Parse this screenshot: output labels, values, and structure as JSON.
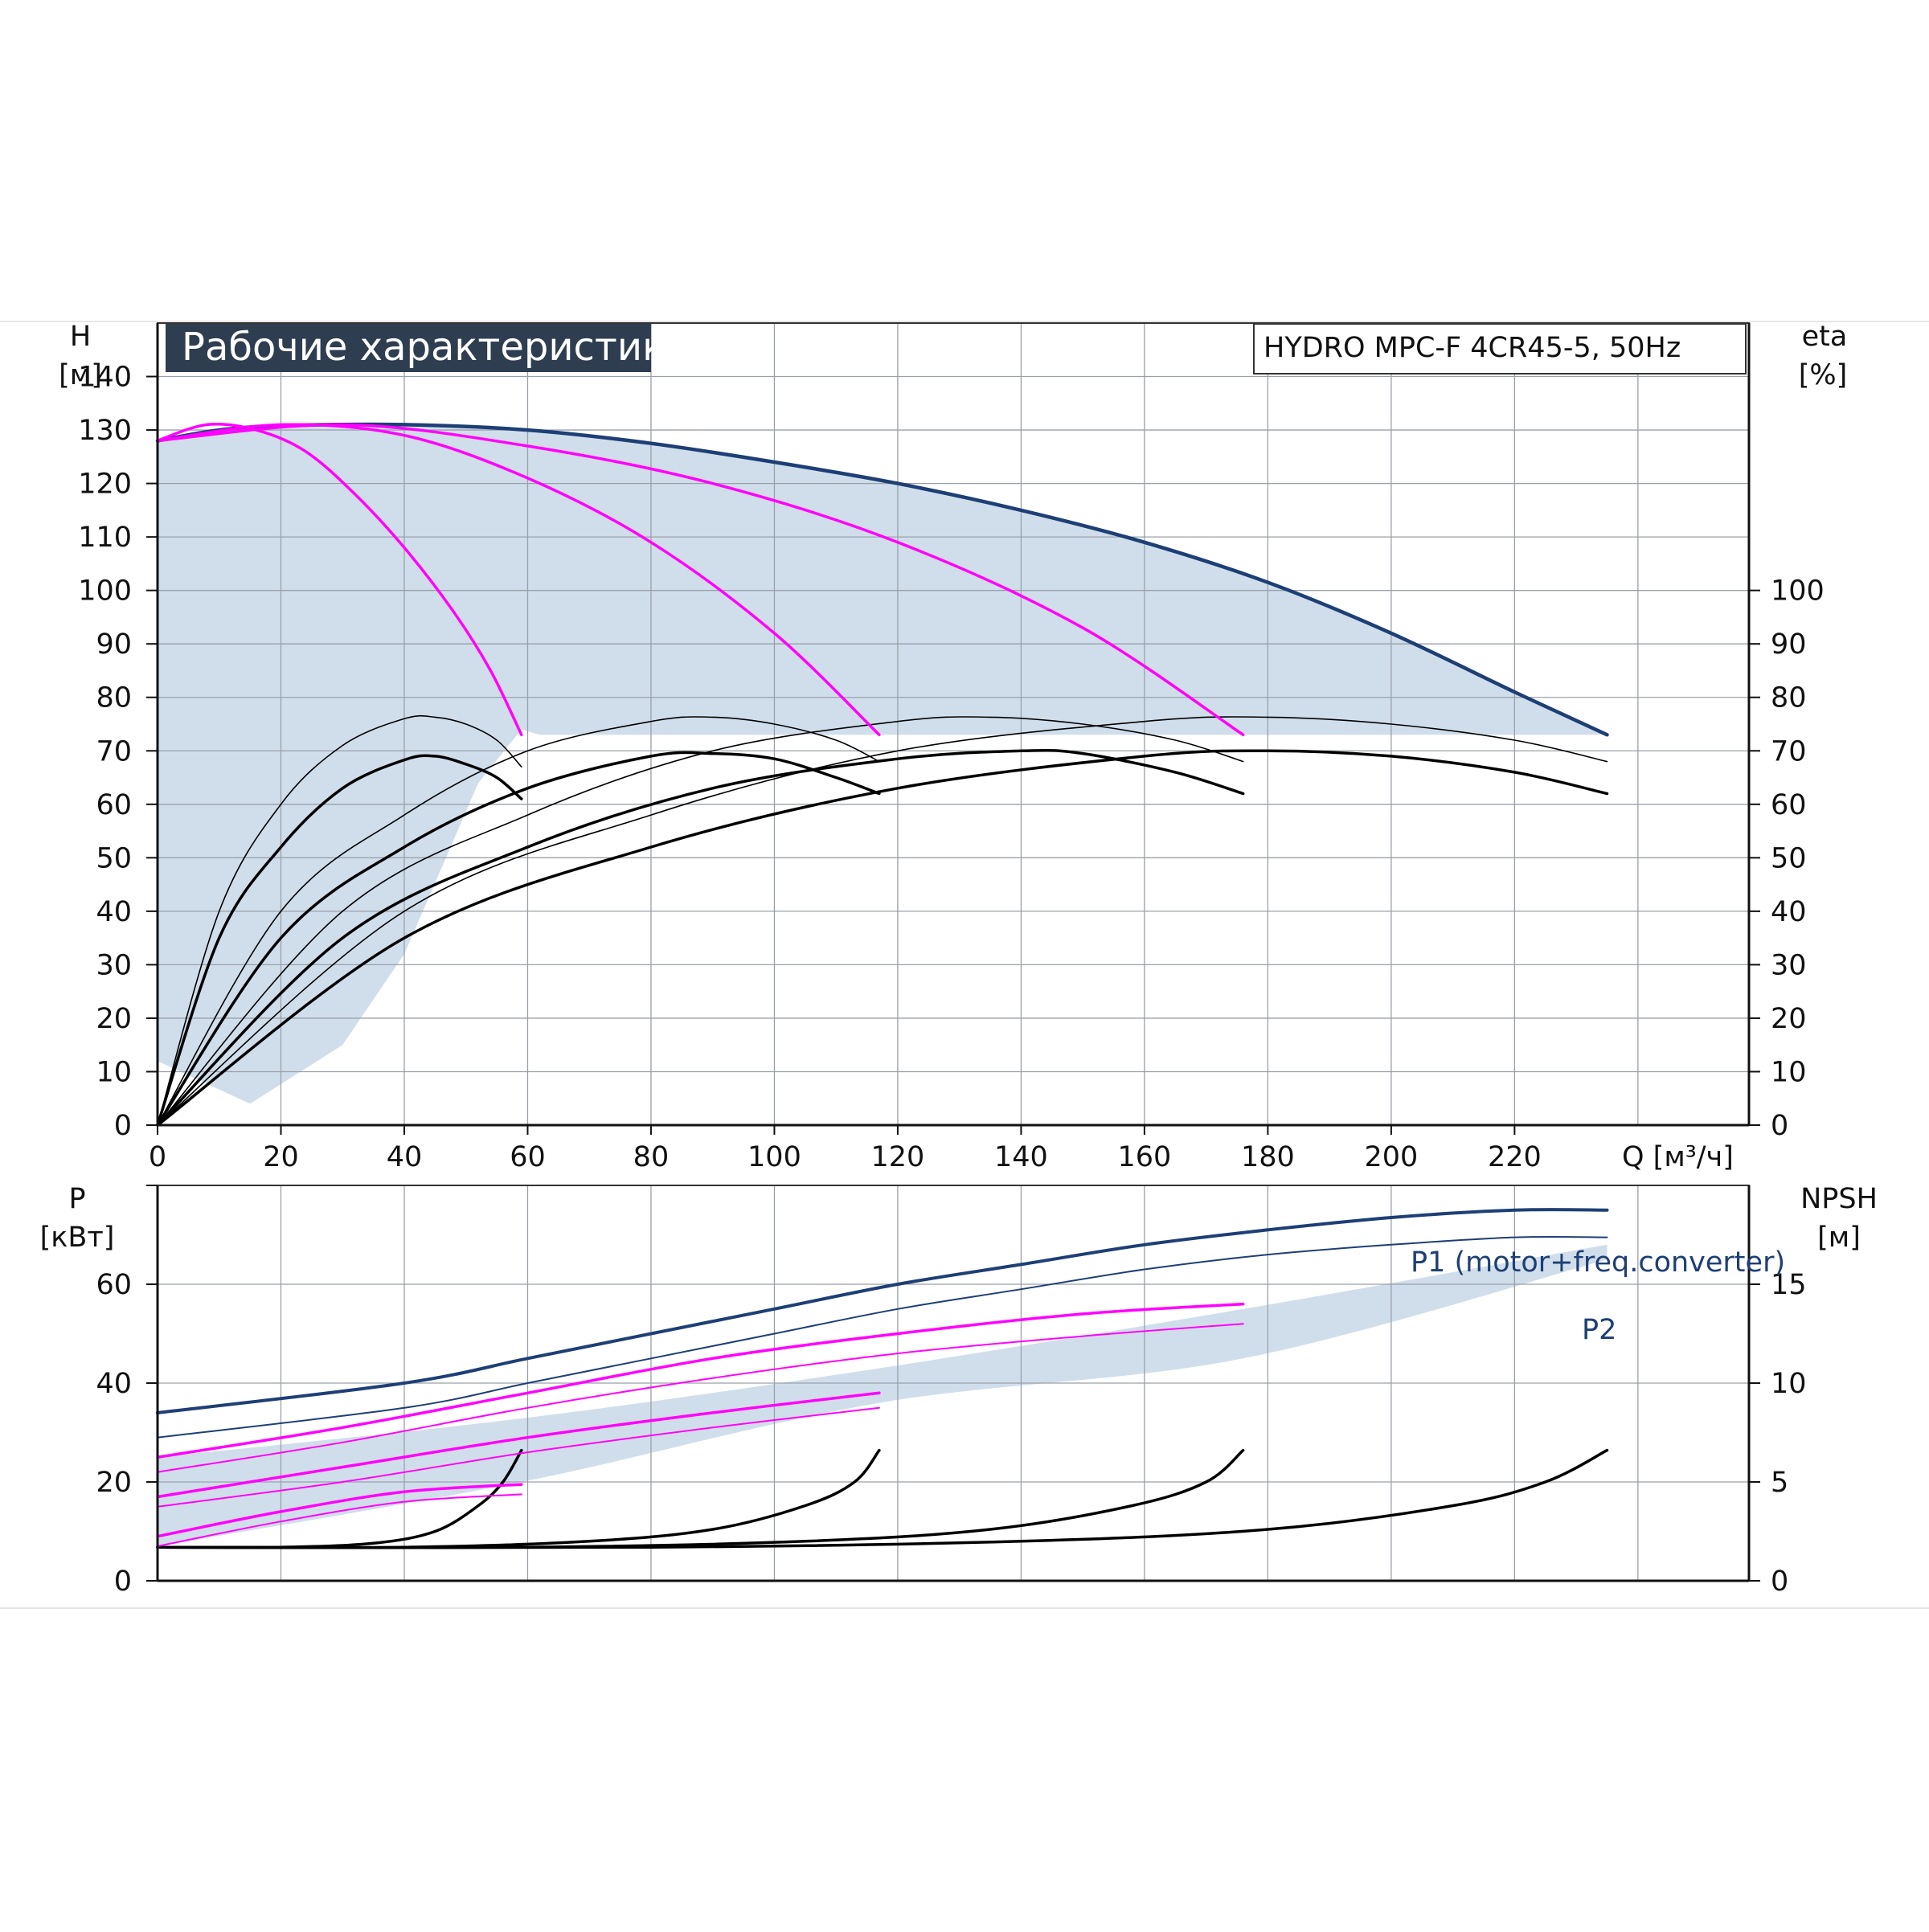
{
  "chart_data": [
    {
      "panel": "upper",
      "type": "line",
      "title": "Рабочие характеристики",
      "model": "HYDRO MPC-F 4CR45-5, 50Hz",
      "ylabel_left": [
        "H",
        "[м]"
      ],
      "ylabel_right": [
        "eta",
        "[%]"
      ],
      "xlabel": "Q [м³/ч]",
      "xticks": [
        0,
        20,
        40,
        60,
        80,
        100,
        120,
        140,
        160,
        180,
        200,
        220
      ],
      "xlim": [
        0,
        258
      ],
      "ylim": [
        0,
        150
      ],
      "yticks_left": [
        0,
        10,
        20,
        30,
        40,
        50,
        60,
        70,
        80,
        90,
        100,
        110,
        120,
        130,
        140
      ],
      "yticks_right": [
        0,
        10,
        20,
        30,
        40,
        50,
        60,
        70,
        80,
        90,
        100
      ],
      "grid": true,
      "colors": {
        "max_curve": "#1d3f75",
        "pump_curve": "#ff00ff",
        "efficiency": "#000000",
        "region": "#d0deec",
        "title_bg": "#2e3e50"
      },
      "region_top": [
        [
          0,
          128
        ],
        [
          10,
          130
        ],
        [
          20,
          130.8
        ],
        [
          40,
          131
        ],
        [
          60,
          130
        ],
        [
          80,
          127.5
        ],
        [
          100,
          124
        ],
        [
          120,
          120
        ],
        [
          140,
          115
        ],
        [
          160,
          109
        ],
        [
          180,
          101.5
        ],
        [
          200,
          92
        ],
        [
          220,
          81
        ],
        [
          235,
          73
        ]
      ],
      "region_bottom_right": [
        [
          235,
          73
        ],
        [
          62,
          73
        ],
        [
          59,
          74
        ],
        [
          52,
          64
        ],
        [
          40,
          32
        ],
        [
          30,
          15
        ],
        [
          15,
          4
        ],
        [
          0,
          12
        ]
      ],
      "region_bottom_left": [
        [
          0,
          12
        ],
        [
          0,
          128
        ]
      ],
      "head_curves": [
        {
          "name": "",
          "color": "#1d3f75",
          "width": 4.5,
          "points": [
            [
              0,
              128
            ],
            [
              10,
              130
            ],
            [
              20,
              130.8
            ],
            [
              40,
              131
            ],
            [
              60,
              130
            ],
            [
              80,
              127.5
            ],
            [
              100,
              124
            ],
            [
              120,
              120
            ],
            [
              140,
              115
            ],
            [
              160,
              109
            ],
            [
              180,
              101.5
            ],
            [
              200,
              92
            ],
            [
              220,
              81
            ],
            [
              235,
              73
            ]
          ]
        },
        {
          "name": "",
          "color": "#ff00ff",
          "width": 3.5,
          "points": [
            [
              0,
              128
            ],
            [
              8,
              131
            ],
            [
              16,
              130
            ],
            [
              24,
              126
            ],
            [
              32,
              118
            ],
            [
              40,
              108
            ],
            [
              48,
              96
            ],
            [
              54,
              85
            ],
            [
              59,
              73
            ]
          ]
        },
        {
          "name": "",
          "color": "#ff00ff",
          "width": 3.5,
          "points": [
            [
              0,
              128
            ],
            [
              20,
              131
            ],
            [
              40,
              129
            ],
            [
              60,
              121
            ],
            [
              80,
              109
            ],
            [
              100,
              92
            ],
            [
              117,
              73
            ]
          ]
        },
        {
          "name": "",
          "color": "#ff00ff",
          "width": 3.5,
          "points": [
            [
              0,
              128
            ],
            [
              30,
              131
            ],
            [
              60,
              127
            ],
            [
              90,
              120
            ],
            [
              120,
              109
            ],
            [
              150,
              93
            ],
            [
              176,
              73
            ]
          ]
        }
      ],
      "efficiency_curves": [
        {
          "name": "",
          "width": 1.6,
          "points": [
            [
              0,
              0
            ],
            [
              10,
              40
            ],
            [
              20,
              60
            ],
            [
              30,
              71
            ],
            [
              40,
              76
            ],
            [
              45,
              76.3
            ],
            [
              50,
              75
            ],
            [
              55,
              72
            ],
            [
              59,
              67
            ]
          ]
        },
        {
          "name": "",
          "width": 3.5,
          "points": [
            [
              0,
              0
            ],
            [
              10,
              35
            ],
            [
              20,
              52
            ],
            [
              30,
              63
            ],
            [
              40,
              68.3
            ],
            [
              45,
              69
            ],
            [
              50,
              67.5
            ],
            [
              55,
              65
            ],
            [
              59,
              61
            ]
          ]
        },
        {
          "name": "",
          "width": 1.6,
          "points": [
            [
              0,
              0
            ],
            [
              20,
              40
            ],
            [
              40,
              58
            ],
            [
              60,
              70
            ],
            [
              80,
              75.5
            ],
            [
              90,
              76.3
            ],
            [
              100,
              75
            ],
            [
              110,
              72
            ],
            [
              117,
              68
            ]
          ]
        },
        {
          "name": "",
          "width": 3.5,
          "points": [
            [
              0,
              0
            ],
            [
              20,
              35
            ],
            [
              40,
              52
            ],
            [
              60,
              63
            ],
            [
              80,
              69
            ],
            [
              90,
              69.5
            ],
            [
              100,
              68.5
            ],
            [
              110,
              65
            ],
            [
              117,
              62
            ]
          ]
        },
        {
          "name": "",
          "width": 1.6,
          "points": [
            [
              0,
              0
            ],
            [
              30,
              40
            ],
            [
              60,
              58
            ],
            [
              90,
              70
            ],
            [
              120,
              75.5
            ],
            [
              135,
              76.3
            ],
            [
              150,
              75
            ],
            [
              165,
              72
            ],
            [
              176,
              68
            ]
          ]
        },
        {
          "name": "",
          "width": 3.5,
          "points": [
            [
              0,
              0
            ],
            [
              30,
              35
            ],
            [
              60,
              52
            ],
            [
              90,
              63
            ],
            [
              120,
              68.5
            ],
            [
              140,
              70
            ],
            [
              150,
              69.5
            ],
            [
              165,
              66
            ],
            [
              176,
              62
            ]
          ]
        },
        {
          "name": "",
          "width": 1.6,
          "points": [
            [
              0,
              0
            ],
            [
              40,
              40
            ],
            [
              80,
              58
            ],
            [
              120,
              70
            ],
            [
              160,
              75.5
            ],
            [
              180,
              76.3
            ],
            [
              200,
              75
            ],
            [
              220,
              72
            ],
            [
              235,
              68
            ]
          ]
        },
        {
          "name": "",
          "width": 3.5,
          "points": [
            [
              0,
              0
            ],
            [
              40,
              35
            ],
            [
              80,
              52
            ],
            [
              120,
              63
            ],
            [
              160,
              69
            ],
            [
              180,
              70
            ],
            [
              200,
              69
            ],
            [
              220,
              66
            ],
            [
              235,
              62
            ]
          ]
        }
      ]
    },
    {
      "panel": "lower",
      "type": "line",
      "ylabel_left": [
        "P",
        "[кВт]"
      ],
      "ylabel_right": [
        "NPSH",
        "[м]"
      ],
      "xlim": [
        0,
        258
      ],
      "ylim": [
        0,
        80
      ],
      "yticks_left": [
        0,
        20,
        40,
        60
      ],
      "yticks_right": [
        0,
        5,
        10,
        15
      ],
      "right_axis_scale_m_per_p_unit": 0.25,
      "grid": true,
      "legend": [
        {
          "label": "P1 (motor+freq.converter)",
          "color": "#1d3f75"
        },
        {
          "label": "P2",
          "color": "#1d3f75"
        }
      ],
      "band_top": [
        [
          0,
          25
        ],
        [
          60,
          33
        ],
        [
          117,
          43
        ],
        [
          176,
          55
        ],
        [
          235,
          68
        ]
      ],
      "band_bottom": [
        [
          235,
          65
        ],
        [
          176,
          45
        ],
        [
          117,
          36
        ],
        [
          59,
          20
        ],
        [
          0,
          7
        ]
      ],
      "power_curves": [
        {
          "name": "P1 (motor+freq.converter)",
          "color": "#1d3f75",
          "width": 4,
          "points": [
            [
              0,
              34
            ],
            [
              40,
              40
            ],
            [
              60,
              45
            ],
            [
              80,
              50
            ],
            [
              100,
              55
            ],
            [
              120,
              60
            ],
            [
              140,
              64
            ],
            [
              160,
              68
            ],
            [
              180,
              71
            ],
            [
              200,
              73.5
            ],
            [
              220,
              75
            ],
            [
              235,
              75
            ]
          ]
        },
        {
          "name": "P2",
          "color": "#1d3f75",
          "width": 2,
          "points": [
            [
              0,
              29
            ],
            [
              40,
              35
            ],
            [
              60,
              40
            ],
            [
              80,
              45
            ],
            [
              100,
              50
            ],
            [
              120,
              55
            ],
            [
              140,
              59
            ],
            [
              160,
              63
            ],
            [
              180,
              66
            ],
            [
              200,
              68
            ],
            [
              220,
              69.5
            ],
            [
              235,
              69.5
            ]
          ]
        },
        {
          "name": "",
          "color": "#ff00ff",
          "width": 3.5,
          "points": [
            [
              0,
              25
            ],
            [
              30,
              31
            ],
            [
              60,
              38
            ],
            [
              90,
              45
            ],
            [
              120,
              50
            ],
            [
              150,
              54
            ],
            [
              176,
              56
            ]
          ]
        },
        {
          "name": "",
          "color": "#ff00ff",
          "width": 2,
          "points": [
            [
              0,
              22
            ],
            [
              30,
              28
            ],
            [
              60,
              35
            ],
            [
              90,
              41
            ],
            [
              120,
              46
            ],
            [
              150,
              49.5
            ],
            [
              176,
              52
            ]
          ]
        },
        {
          "name": "",
          "color": "#ff00ff",
          "width": 3.5,
          "points": [
            [
              0,
              17
            ],
            [
              30,
              23
            ],
            [
              60,
              29
            ],
            [
              90,
              34
            ],
            [
              117,
              38
            ]
          ]
        },
        {
          "name": "",
          "color": "#ff00ff",
          "width": 2,
          "points": [
            [
              0,
              15
            ],
            [
              30,
              20
            ],
            [
              60,
              26
            ],
            [
              90,
              31
            ],
            [
              117,
              35
            ]
          ]
        },
        {
          "name": "",
          "color": "#ff00ff",
          "width": 3.5,
          "points": [
            [
              0,
              9
            ],
            [
              20,
              14
            ],
            [
              40,
              18
            ],
            [
              59,
              19.5
            ]
          ]
        },
        {
          "name": "",
          "color": "#ff00ff",
          "width": 2,
          "points": [
            [
              0,
              7
            ],
            [
              20,
              12
            ],
            [
              40,
              16
            ],
            [
              59,
              17.5
            ]
          ]
        }
      ],
      "npsh_curves": [
        {
          "name": "",
          "points": [
            [
              0,
              1.7
            ],
            [
              20,
              1.7
            ],
            [
              35,
              1.9
            ],
            [
              45,
              2.5
            ],
            [
              52,
              3.8
            ],
            [
              56,
              5
            ],
            [
              59,
              6.6
            ]
          ]
        },
        {
          "name": "",
          "points": [
            [
              0,
              1.7
            ],
            [
              40,
              1.7
            ],
            [
              70,
              2
            ],
            [
              90,
              2.6
            ],
            [
              105,
              3.8
            ],
            [
              113,
              5
            ],
            [
              117,
              6.6
            ]
          ]
        },
        {
          "name": "",
          "points": [
            [
              0,
              1.7
            ],
            [
              60,
              1.7
            ],
            [
              105,
              2
            ],
            [
              135,
              2.6
            ],
            [
              158,
              3.8
            ],
            [
              170,
              5
            ],
            [
              176,
              6.6
            ]
          ]
        },
        {
          "name": "",
          "points": [
            [
              0,
              1.7
            ],
            [
              80,
              1.7
            ],
            [
              140,
              2
            ],
            [
              180,
              2.6
            ],
            [
              210,
              3.8
            ],
            [
              225,
              5
            ],
            [
              235,
              6.6
            ]
          ]
        }
      ]
    }
  ]
}
